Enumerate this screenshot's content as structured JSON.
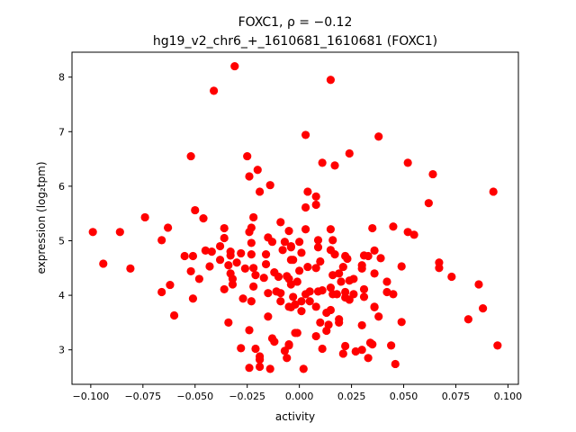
{
  "chart_data": {
    "type": "scatter",
    "title": "FOXC1, ρ = −0.12",
    "subtitle": "hg19_v2_chr6_+_1610681_1610681 (FOXC1)",
    "xlabel": "activity",
    "ylabel": "expression (log₂tpm)",
    "xlim": [
      -0.109,
      0.105
    ],
    "ylim": [
      2.368,
      8.457
    ],
    "xticks": [
      -0.1,
      -0.075,
      -0.05,
      -0.025,
      0.0,
      0.025,
      0.05,
      0.075,
      0.1
    ],
    "xtick_labels": [
      "−0.100",
      "−0.075",
      "−0.050",
      "−0.025",
      "0.000",
      "0.025",
      "0.050",
      "0.075",
      "0.100"
    ],
    "yticks": [
      3,
      4,
      5,
      6,
      7,
      8
    ],
    "ytick_labels": [
      "3",
      "4",
      "5",
      "6",
      "7",
      "8"
    ],
    "grid": false,
    "marker_color": "#ff0000",
    "points": [
      [
        -0.031,
        8.2
      ],
      [
        -0.041,
        7.75
      ],
      [
        0.015,
        7.95
      ],
      [
        0.003,
        6.94
      ],
      [
        0.038,
        6.91
      ],
      [
        -0.052,
        6.55
      ],
      [
        -0.025,
        6.55
      ],
      [
        -0.02,
        6.3
      ],
      [
        -0.024,
        6.18
      ],
      [
        -0.014,
        6.02
      ],
      [
        -0.019,
        5.9
      ],
      [
        0.024,
        6.6
      ],
      [
        0.011,
        6.43
      ],
      [
        0.017,
        6.38
      ],
      [
        0.052,
        6.43
      ],
      [
        0.064,
        6.22
      ],
      [
        0.093,
        5.9
      ],
      [
        0.062,
        5.69
      ],
      [
        0.004,
        5.9
      ],
      [
        0.008,
        5.81
      ],
      [
        0.008,
        5.66
      ],
      [
        0.003,
        5.61
      ],
      [
        -0.05,
        5.56
      ],
      [
        -0.046,
        5.41
      ],
      [
        -0.074,
        5.43
      ],
      [
        -0.063,
        5.24
      ],
      [
        -0.066,
        5.01
      ],
      [
        -0.099,
        5.16
      ],
      [
        -0.086,
        5.16
      ],
      [
        -0.094,
        4.58
      ],
      [
        -0.081,
        4.49
      ],
      [
        -0.062,
        4.19
      ],
      [
        -0.066,
        4.06
      ],
      [
        -0.052,
        4.44
      ],
      [
        -0.048,
        4.3
      ],
      [
        -0.051,
        3.94
      ],
      [
        -0.06,
        3.63
      ],
      [
        -0.055,
        4.72
      ],
      [
        -0.051,
        4.72
      ],
      [
        -0.045,
        4.82
      ],
      [
        -0.042,
        4.8
      ],
      [
        -0.038,
        4.9
      ],
      [
        -0.033,
        4.8
      ],
      [
        -0.028,
        4.77
      ],
      [
        -0.023,
        4.75
      ],
      [
        -0.016,
        4.75
      ],
      [
        -0.008,
        4.83
      ],
      [
        -0.004,
        4.9
      ],
      [
        -0.036,
        5.23
      ],
      [
        -0.023,
        5.24
      ],
      [
        -0.022,
        5.43
      ],
      [
        -0.009,
        5.34
      ],
      [
        -0.005,
        5.18
      ],
      [
        -0.036,
        5.05
      ],
      [
        -0.024,
        5.16
      ],
      [
        -0.023,
        4.96
      ],
      [
        -0.015,
        5.06
      ],
      [
        -0.013,
        4.98
      ],
      [
        -0.007,
        4.98
      ],
      [
        -0.038,
        4.65
      ],
      [
        -0.033,
        4.73
      ],
      [
        -0.03,
        4.6
      ],
      [
        -0.034,
        4.55
      ],
      [
        -0.043,
        4.53
      ],
      [
        -0.026,
        4.49
      ],
      [
        -0.022,
        4.5
      ],
      [
        -0.016,
        4.57
      ],
      [
        -0.004,
        4.65
      ],
      [
        -0.033,
        4.4
      ],
      [
        -0.032,
        4.3
      ],
      [
        -0.032,
        4.2
      ],
      [
        -0.021,
        4.37
      ],
      [
        -0.017,
        4.32
      ],
      [
        -0.012,
        4.42
      ],
      [
        -0.01,
        4.34
      ],
      [
        -0.006,
        4.35
      ],
      [
        -0.004,
        4.2
      ],
      [
        -0.022,
        4.16
      ],
      [
        -0.036,
        4.11
      ],
      [
        -0.027,
        3.94
      ],
      [
        -0.023,
        3.89
      ],
      [
        -0.015,
        4.04
      ],
      [
        -0.011,
        4.07
      ],
      [
        -0.009,
        4.04
      ],
      [
        -0.009,
        3.89
      ],
      [
        -0.004,
        3.78
      ],
      [
        -0.015,
        3.61
      ],
      [
        -0.034,
        3.5
      ],
      [
        -0.024,
        3.36
      ],
      [
        -0.013,
        3.21
      ],
      [
        -0.012,
        3.15
      ],
      [
        -0.005,
        3.08
      ],
      [
        -0.007,
        2.98
      ],
      [
        -0.006,
        2.85
      ],
      [
        -0.028,
        3.03
      ],
      [
        -0.021,
        3.02
      ],
      [
        -0.019,
        2.88
      ],
      [
        -0.019,
        2.82
      ],
      [
        -0.024,
        2.67
      ],
      [
        -0.019,
        2.69
      ],
      [
        -0.014,
        2.65
      ],
      [
        -0.002,
        3.31
      ],
      [
        0.003,
        5.21
      ],
      [
        0.015,
        5.21
      ],
      [
        0.035,
        5.23
      ],
      [
        0.045,
        5.26
      ],
      [
        0.052,
        5.16
      ],
      [
        0.055,
        5.11
      ],
      [
        0.0,
        4.98
      ],
      [
        0.009,
        5.01
      ],
      [
        0.016,
        5.01
      ],
      [
        0.009,
        4.88
      ],
      [
        -0.004,
        4.88
      ],
      [
        0.001,
        4.78
      ],
      [
        0.015,
        4.83
      ],
      [
        0.017,
        4.75
      ],
      [
        0.022,
        4.72
      ],
      [
        0.023,
        4.67
      ],
      [
        0.031,
        4.73
      ],
      [
        0.033,
        4.72
      ],
      [
        0.036,
        4.82
      ],
      [
        0.039,
        4.68
      ],
      [
        -0.003,
        4.65
      ],
      [
        0.01,
        4.62
      ],
      [
        0.004,
        4.52
      ],
      [
        0.008,
        4.5
      ],
      [
        0.021,
        4.52
      ],
      [
        0.03,
        4.55
      ],
      [
        0.03,
        4.49
      ],
      [
        0.036,
        4.4
      ],
      [
        0.049,
        4.53
      ],
      [
        0.067,
        4.6
      ],
      [
        0.067,
        4.5
      ],
      [
        0.073,
        4.34
      ],
      [
        0.086,
        4.2
      ],
      [
        0.0,
        4.45
      ],
      [
        0.016,
        4.37
      ],
      [
        0.019,
        4.4
      ],
      [
        0.02,
        4.25
      ],
      [
        0.024,
        4.27
      ],
      [
        0.026,
        4.3
      ],
      [
        0.042,
        4.25
      ],
      [
        -0.005,
        4.3
      ],
      [
        -0.001,
        4.25
      ],
      [
        0.031,
        4.11
      ],
      [
        0.042,
        4.06
      ],
      [
        0.045,
        4.02
      ],
      [
        0.003,
        4.02
      ],
      [
        0.005,
        4.07
      ],
      [
        0.009,
        4.07
      ],
      [
        0.011,
        4.09
      ],
      [
        0.015,
        4.14
      ],
      [
        0.016,
        4.02
      ],
      [
        0.018,
        4.02
      ],
      [
        0.022,
        4.06
      ],
      [
        0.022,
        3.96
      ],
      [
        0.024,
        3.92
      ],
      [
        0.026,
        4.02
      ],
      [
        0.031,
        3.97
      ],
      [
        -0.003,
        3.97
      ],
      [
        0.001,
        3.89
      ],
      [
        0.005,
        3.89
      ],
      [
        0.008,
        3.79
      ],
      [
        -0.005,
        3.79
      ],
      [
        -0.002,
        3.83
      ],
      [
        0.001,
        3.71
      ],
      [
        0.036,
        3.78
      ],
      [
        0.036,
        3.79
      ],
      [
        0.013,
        3.68
      ],
      [
        0.015,
        3.73
      ],
      [
        0.088,
        3.76
      ],
      [
        0.038,
        3.61
      ],
      [
        0.049,
        3.51
      ],
      [
        0.081,
        3.56
      ],
      [
        0.01,
        3.5
      ],
      [
        0.019,
        3.56
      ],
      [
        0.019,
        3.5
      ],
      [
        0.014,
        3.46
      ],
      [
        0.013,
        3.35
      ],
      [
        0.03,
        3.45
      ],
      [
        -0.001,
        3.31
      ],
      [
        0.008,
        3.25
      ],
      [
        -0.005,
        3.1
      ],
      [
        0.011,
        3.02
      ],
      [
        0.022,
        3.07
      ],
      [
        0.021,
        2.93
      ],
      [
        0.027,
        2.97
      ],
      [
        0.03,
        3.0
      ],
      [
        0.034,
        3.13
      ],
      [
        0.035,
        3.1
      ],
      [
        0.044,
        3.08
      ],
      [
        0.033,
        2.85
      ],
      [
        0.046,
        2.74
      ],
      [
        0.095,
        3.08
      ],
      [
        0.002,
        2.65
      ]
    ]
  }
}
